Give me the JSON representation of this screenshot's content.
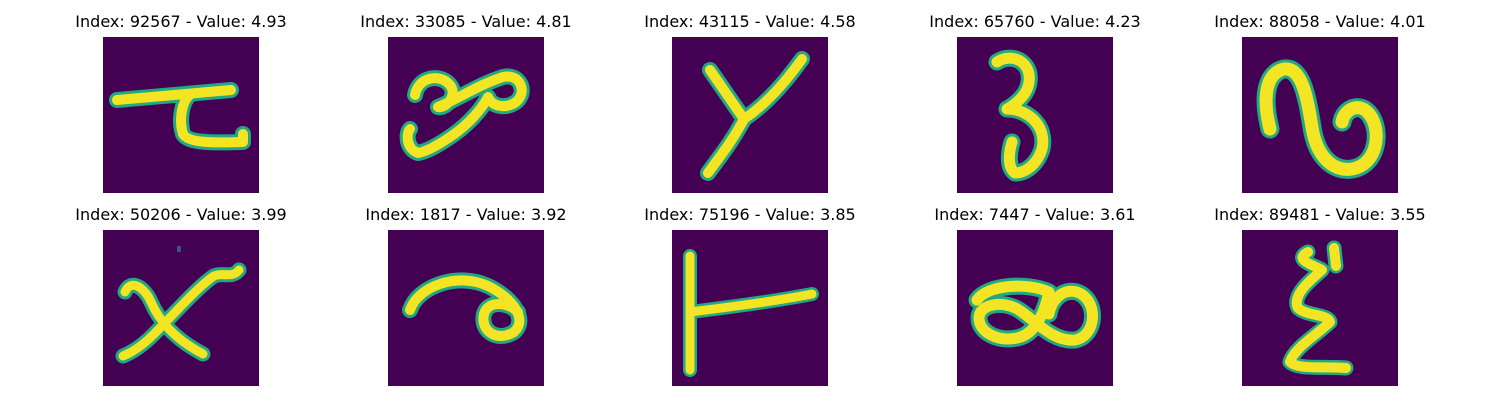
{
  "colors": {
    "background": "#440154",
    "stroke": "#f4e524",
    "edge": "#23a884"
  },
  "tiles": [
    {
      "title": "Index: 92567 - Value: 4.93",
      "subject": "handwritten character, flipped"
    },
    {
      "title": "Index: 33085 - Value: 4.81",
      "subject": "handwritten character, flipped"
    },
    {
      "title": "Index: 43115 - Value: 4.58",
      "subject": "handwritten character, flipped"
    },
    {
      "title": "Index: 65760 - Value: 4.23",
      "subject": "handwritten character, flipped"
    },
    {
      "title": "Index: 88058 - Value: 4.01",
      "subject": "handwritten character, flipped"
    },
    {
      "title": "Index: 50206 - Value: 3.99",
      "subject": "handwritten character, flipped"
    },
    {
      "title": "Index: 1817 - Value: 3.92",
      "subject": "handwritten character, flipped"
    },
    {
      "title": "Index: 75196 - Value: 3.85",
      "subject": "handwritten character, flipped"
    },
    {
      "title": "Index: 7447 - Value: 3.61",
      "subject": "handwritten character, flipped"
    },
    {
      "title": "Index: 89481 - Value: 3.55",
      "subject": "handwritten character, flipped"
    }
  ]
}
